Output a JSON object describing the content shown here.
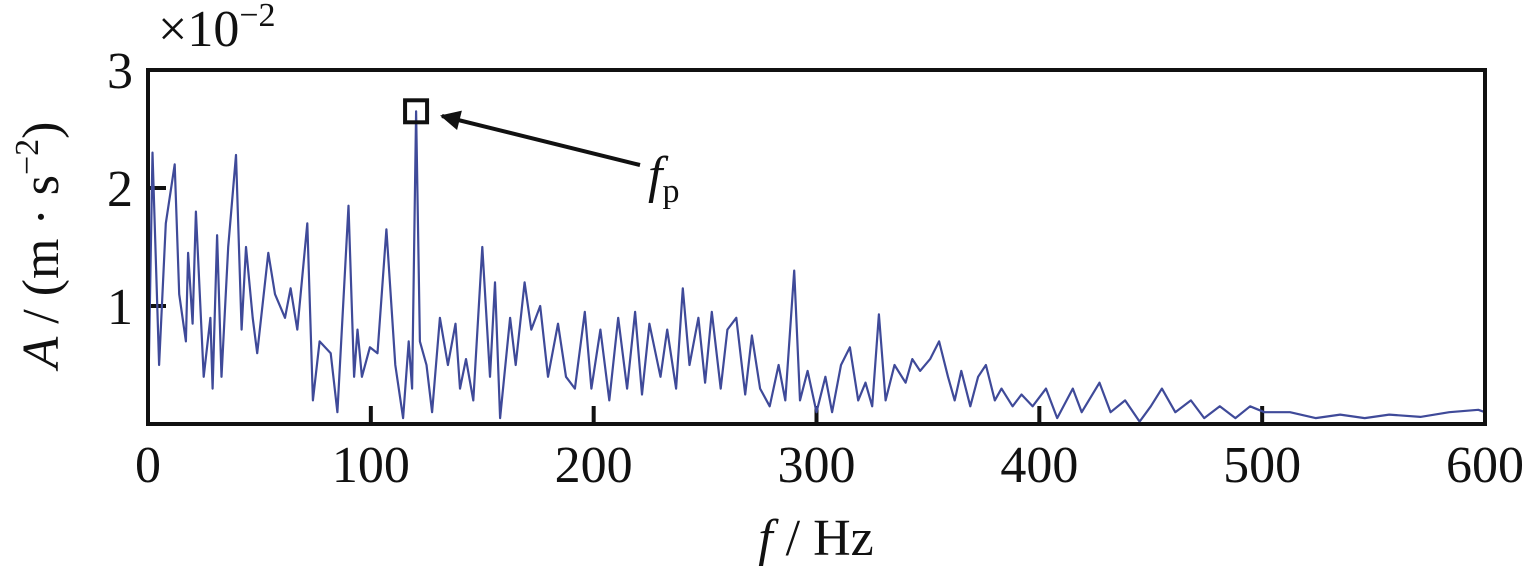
{
  "chart_data": {
    "type": "line",
    "multiplier": {
      "base": "×10",
      "exponent": "−2"
    },
    "ylabel": {
      "symbol": "A",
      "unit": " / (m · s",
      "exponent": "−2",
      "close": ")"
    },
    "xlabel": {
      "symbol": "f",
      "unit": " / Hz"
    },
    "annotation": {
      "text": "f",
      "subscript": "p",
      "x": 120.3,
      "y": 2.65
    },
    "xlim": [
      0,
      600
    ],
    "ylim": [
      0,
      3
    ],
    "xticks": [
      0,
      100,
      200,
      300,
      400,
      500,
      600
    ],
    "yticks": [
      1,
      2,
      3
    ],
    "series": [
      {
        "name": "A",
        "color": "#3f4a99",
        "x": [
          0,
          2,
          5,
          8,
          12,
          14,
          17,
          18,
          20,
          21.5,
          25,
          28,
          29,
          31,
          33,
          36,
          39.5,
          42,
          44,
          47,
          49,
          54,
          57,
          61.5,
          64,
          67,
          71.5,
          74,
          77,
          82,
          85,
          90,
          92.5,
          94,
          96,
          99.6,
          103,
          107,
          111,
          114.5,
          117,
          118.5,
          120.3,
          122,
          125,
          127.5,
          131,
          134.6,
          138,
          140,
          142.7,
          146,
          150,
          153.5,
          155.7,
          158,
          162.5,
          165,
          169,
          172,
          176,
          179.5,
          184,
          187.6,
          191.6,
          196,
          199,
          203,
          207,
          211,
          215,
          218.6,
          221.7,
          225,
          230,
          233,
          237,
          240,
          243,
          247,
          250,
          253,
          257,
          260,
          264,
          268,
          271,
          274.7,
          279,
          283,
          286,
          290,
          292.6,
          296,
          300,
          304,
          307,
          311,
          315,
          318.7,
          322,
          325,
          328,
          331,
          335,
          340,
          343,
          346.5,
          351,
          355,
          359,
          362,
          365,
          369,
          372.5,
          376,
          380,
          383,
          388,
          392,
          397,
          403,
          408,
          415,
          419,
          427,
          432,
          438.5,
          445,
          450,
          455,
          461,
          468,
          474,
          481,
          488,
          494.6,
          501,
          512.5,
          524,
          535,
          546,
          557,
          571,
          584,
          597,
          600
        ],
        "values": [
          0.1,
          2.3,
          0.5,
          1.7,
          2.2,
          1.1,
          0.7,
          1.45,
          0.85,
          1.8,
          0.4,
          0.9,
          0.3,
          1.6,
          0.4,
          1.5,
          2.28,
          0.8,
          1.5,
          0.9,
          0.6,
          1.45,
          1.1,
          0.9,
          1.15,
          0.8,
          1.7,
          0.2,
          0.7,
          0.6,
          0.1,
          1.85,
          0.4,
          0.8,
          0.4,
          0.65,
          0.6,
          1.65,
          0.5,
          0.05,
          0.7,
          0.3,
          2.65,
          0.7,
          0.5,
          0.1,
          0.9,
          0.5,
          0.85,
          0.3,
          0.55,
          0.2,
          1.5,
          0.4,
          1.2,
          0.05,
          0.9,
          0.5,
          1.2,
          0.8,
          1.0,
          0.4,
          0.85,
          0.4,
          0.3,
          0.95,
          0.3,
          0.8,
          0.2,
          0.9,
          0.3,
          0.95,
          0.25,
          0.85,
          0.4,
          0.8,
          0.3,
          1.15,
          0.5,
          0.9,
          0.35,
          0.95,
          0.3,
          0.8,
          0.9,
          0.25,
          0.75,
          0.3,
          0.15,
          0.5,
          0.2,
          1.3,
          0.2,
          0.45,
          0.1,
          0.4,
          0.1,
          0.5,
          0.65,
          0.2,
          0.35,
          0.15,
          0.93,
          0.2,
          0.5,
          0.35,
          0.55,
          0.45,
          0.55,
          0.7,
          0.4,
          0.2,
          0.45,
          0.15,
          0.4,
          0.5,
          0.2,
          0.3,
          0.15,
          0.25,
          0.15,
          0.3,
          0.05,
          0.3,
          0.1,
          0.35,
          0.1,
          0.2,
          0.02,
          0.15,
          0.3,
          0.1,
          0.2,
          0.05,
          0.15,
          0.05,
          0.15,
          0.1,
          0.1,
          0.05,
          0.08,
          0.05,
          0.08,
          0.06,
          0.1,
          0.12,
          0.1
        ]
      }
    ]
  }
}
